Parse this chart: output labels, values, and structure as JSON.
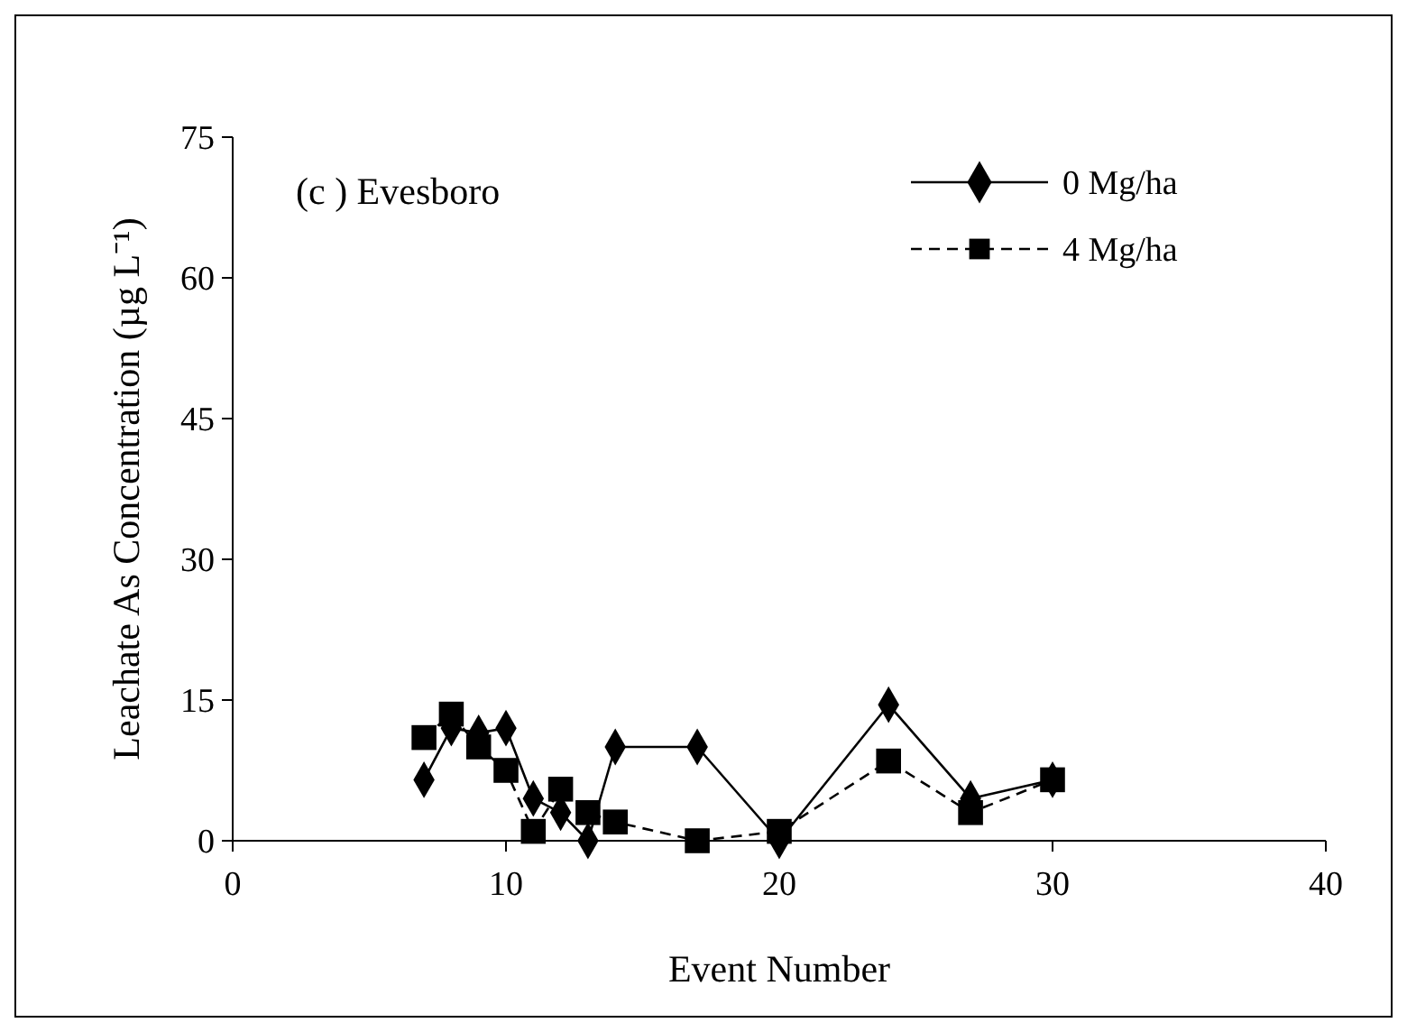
{
  "chart_data": {
    "type": "line",
    "title": "(c ) Evesboro",
    "xlabel": "Event Number",
    "ylabel": "Leachate As Concentration (µg L⁻¹)",
    "xlim": [
      0,
      40
    ],
    "xticks": [
      0,
      10,
      20,
      30,
      40
    ],
    "ylim": [
      0,
      75
    ],
    "yticks": [
      0,
      15,
      30,
      45,
      60,
      75
    ],
    "grid": false,
    "legend": "top right",
    "series": [
      {
        "name": "0 Mg/ha",
        "color": "#000000",
        "marker": "diamond",
        "line_style": "solid",
        "x": [
          7,
          8,
          9,
          10,
          11,
          12,
          13,
          14,
          17,
          20,
          24,
          27,
          30
        ],
        "values": [
          6.5,
          12,
          11.5,
          12,
          4.5,
          3,
          0,
          10,
          10,
          0,
          14.5,
          4.5,
          6.5
        ]
      },
      {
        "name": "4 Mg/ha",
        "color": "#000000",
        "marker": "square",
        "line_style": "dashed",
        "x": [
          7,
          8,
          9,
          10,
          11,
          12,
          13,
          14,
          17,
          20,
          24,
          27,
          30
        ],
        "values": [
          11,
          13.5,
          10,
          7.5,
          1,
          5.5,
          3,
          2,
          0,
          1,
          8.5,
          3,
          6.5
        ]
      }
    ]
  }
}
